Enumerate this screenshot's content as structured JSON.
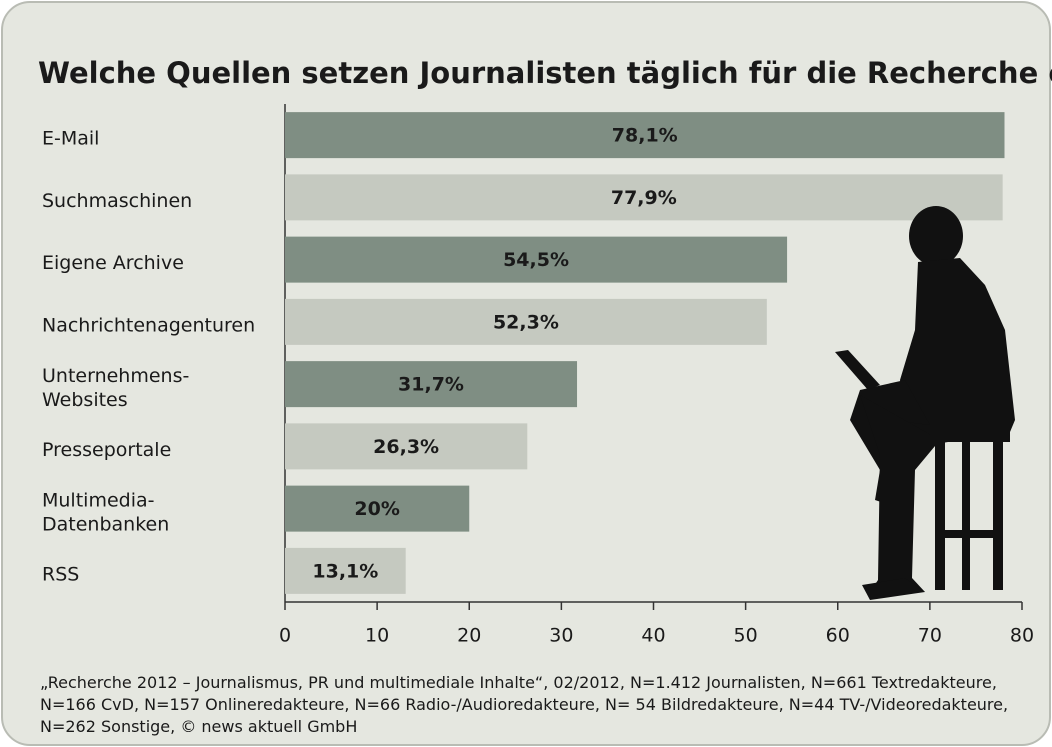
{
  "chart_data": {
    "type": "bar",
    "orientation": "horizontal",
    "title": "Welche Quellen setzen Journalisten täglich für die Recherche ein?",
    "categories": [
      "E-Mail",
      "Suchmaschinen",
      "Eigene Archive",
      "Nachrichtenagenturen",
      "Unternehmens-\nWebsites",
      "Presseportale",
      "Multimedia-\nDatenbanken",
      "RSS"
    ],
    "values": [
      78.1,
      77.9,
      54.5,
      52.3,
      31.7,
      26.3,
      20,
      13.1
    ],
    "value_labels": [
      "78,1%",
      "77,9%",
      "54,5%",
      "52,3%",
      "31,7%",
      "26,3%",
      "20%",
      "13,1%"
    ],
    "colors": [
      "#7f8e83",
      "#c5c9c0",
      "#7f8e83",
      "#c5c9c0",
      "#7f8e83",
      "#c5c9c0",
      "#7f8e83",
      "#c5c9c0"
    ],
    "xlim": [
      0,
      80
    ],
    "xticks": [
      0,
      10,
      20,
      30,
      40,
      50,
      60,
      70,
      80
    ],
    "note": "„Recherche 2012 – Journalismus, PR und multimediale Inhalte“, 02/2012, N=1.412 Journalisten, N=661 Textredakteure, N=166 CvD, N=157 Onlineredakteure, N=66 Radio-/Audioredakteure, N= 54 Bildredakteure, N=44 TV-/Videoredakteure, N=262 Sonstige, © news aktuell GmbH"
  }
}
